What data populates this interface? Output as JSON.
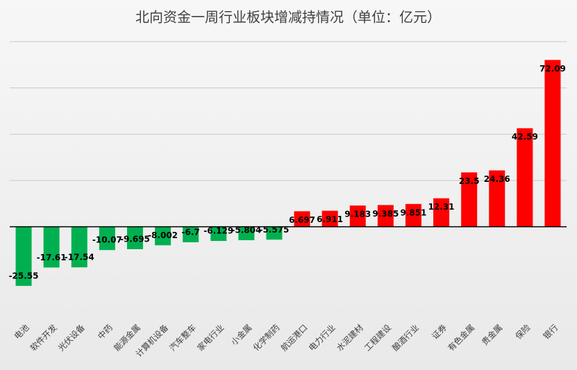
{
  "chart_data": {
    "type": "bar",
    "title": "北向资金一周行业板块增减持情况（单位：亿元）",
    "categories": [
      "电池",
      "软件开发",
      "光伏设备",
      "中药",
      "能源金属",
      "计算机设备",
      "汽车整车",
      "家电行业",
      "小金属",
      "化学制药",
      "航运港口",
      "电力行业",
      "水泥建材",
      "工程建设",
      "酿酒行业",
      "证券",
      "有色金属",
      "贵金属",
      "保险",
      "银行"
    ],
    "values": [
      -25.55,
      -17.61,
      -17.54,
      -10.07,
      -9.695,
      -8.002,
      -6.7,
      -6.129,
      -5.804,
      -5.575,
      6.697,
      6.911,
      9.183,
      9.385,
      9.851,
      12.31,
      23.5,
      24.36,
      42.59,
      72.09
    ],
    "colors": [
      "#00b050",
      "#00b050",
      "#00b050",
      "#00b050",
      "#00b050",
      "#00b050",
      "#00b050",
      "#00b050",
      "#00b050",
      "#00b050",
      "#ff0000",
      "#ff0000",
      "#ff0000",
      "#ff0000",
      "#ff0000",
      "#ff0000",
      "#ff0000",
      "#ff0000",
      "#ff0000",
      "#ff0000"
    ],
    "ylim": [
      -40,
      80
    ],
    "yticks": [
      20,
      40,
      60,
      80
    ],
    "grid": true
  }
}
